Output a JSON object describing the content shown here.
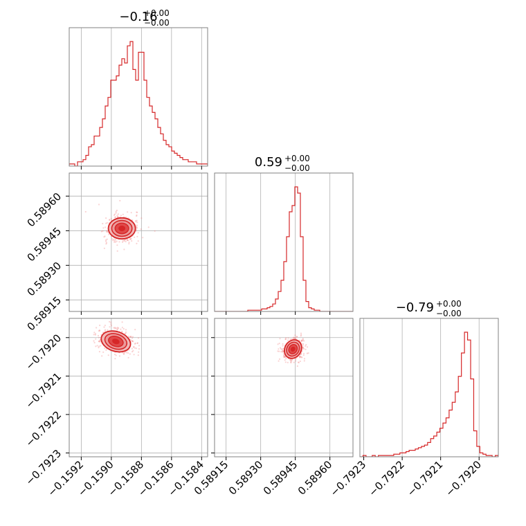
{
  "colors": {
    "main": "#d62728",
    "fill_inner": "#e04a4a",
    "fill_outer": "#f2b9b9",
    "points": "#f08080",
    "grid": "#b0b0b0",
    "frame": "#808080"
  },
  "titles": [
    {
      "value": "−0.16",
      "sup": "+0.00",
      "sub": "−0.00"
    },
    {
      "value": "0.59",
      "sup": "+0.00",
      "sub": "−0.00"
    },
    {
      "value": "−0.79",
      "sup": "+0.00",
      "sub": "−0.00"
    }
  ],
  "chart_data": {
    "type": "corner",
    "parameters": [
      {
        "range": [
          -0.15928,
          -0.15836
        ],
        "ticks": [
          -0.1592,
          -0.159,
          -0.1588,
          -0.1586,
          -0.1584
        ],
        "tick_labels": [
          "−0.1592",
          "−0.1590",
          "−0.1588",
          "−0.1586",
          "−0.1584"
        ]
      },
      {
        "range": [
          0.5891,
          0.5897
        ],
        "ticks": [
          0.58915,
          0.5893,
          0.58945,
          0.5896
        ],
        "tick_labels": [
          "0.58915",
          "0.58930",
          "0.58945",
          "0.58960"
        ]
      },
      {
        "range": [
          -0.79231,
          -0.79195
        ],
        "ticks": [
          -0.7923,
          -0.7922,
          -0.7921,
          -0.792
        ],
        "tick_labels": [
          "−0.7923",
          "−0.7922",
          "−0.7921",
          "−0.7920"
        ]
      }
    ],
    "histograms": [
      {
        "param": 0,
        "counts": [
          1,
          1,
          0,
          2,
          2,
          3,
          5,
          9,
          10,
          14,
          14,
          18,
          22,
          28,
          32,
          40,
          40,
          42,
          47,
          50,
          48,
          56,
          58,
          45,
          40,
          53,
          53,
          40,
          32,
          28,
          25,
          22,
          18,
          15,
          12,
          10,
          9,
          7,
          6,
          5,
          4,
          3,
          3,
          2,
          2,
          2,
          1,
          1,
          1,
          1
        ]
      },
      {
        "param": 1,
        "counts": [
          0,
          0,
          0,
          0,
          0,
          0,
          0,
          0,
          0,
          0,
          0,
          0,
          1,
          1,
          1,
          1,
          1,
          2,
          2,
          3,
          4,
          6,
          10,
          16,
          25,
          40,
          60,
          80,
          85,
          100,
          95,
          60,
          25,
          8,
          3,
          2,
          1,
          1,
          0,
          0,
          0,
          0,
          0,
          0,
          0,
          0,
          0,
          0,
          0,
          0
        ]
      },
      {
        "param": 2,
        "counts": [
          0,
          1,
          0,
          0,
          1,
          0,
          1,
          1,
          1,
          1,
          1,
          2,
          2,
          3,
          3,
          4,
          5,
          5,
          6,
          7,
          8,
          9,
          11,
          14,
          16,
          19,
          22,
          26,
          30,
          36,
          42,
          50,
          62,
          80,
          96,
          90,
          60,
          20,
          8,
          3,
          2,
          1,
          1,
          0,
          1
        ]
      }
    ],
    "contours_2d": [
      {
        "x_param": 0,
        "y_param": 1,
        "center": [
          -0.15893,
          0.58946
        ],
        "spread": [
          4.5e-05,
          2.28e-05
        ],
        "rotation_deg": 0
      },
      {
        "x_param": 0,
        "y_param": 2,
        "center": [
          -0.15897,
          -0.79201
        ],
        "spread": [
          5e-05,
          1.28e-05
        ],
        "rotation_deg": 18
      },
      {
        "x_param": 1,
        "y_param": 2,
        "center": [
          0.58944,
          -0.79203
        ],
        "spread": [
          2.1e-05,
          1.05e-05
        ],
        "rotation_deg": -58
      }
    ]
  }
}
